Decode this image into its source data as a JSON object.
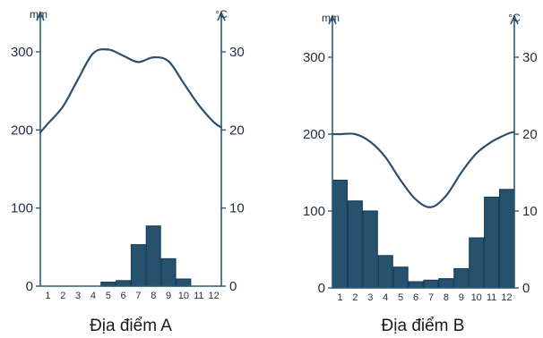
{
  "chart_data": [
    {
      "type": "bar",
      "subtype": "climate-chart",
      "title": "Địa điểm A",
      "left_axis_unit": "mm",
      "right_axis_unit": "°C",
      "left_ticks": [
        "0",
        "100",
        "200",
        "300"
      ],
      "right_ticks": [
        "0",
        "10",
        "20",
        "30"
      ],
      "ylim_left": [
        0,
        300
      ],
      "ylim_right": [
        0,
        30
      ],
      "categories": [
        "1",
        "2",
        "3",
        "4",
        "5",
        "6",
        "7",
        "8",
        "9",
        "10",
        "11",
        "12"
      ],
      "rainfall": [
        0,
        0,
        0,
        0,
        5,
        7,
        53,
        77,
        35,
        9,
        0,
        0
      ],
      "temperature": [
        20.8,
        23,
        26.5,
        29.8,
        30.3,
        29.5,
        28.7,
        29.3,
        28.8,
        26,
        23.2,
        21
      ]
    },
    {
      "type": "bar",
      "subtype": "climate-chart",
      "title": "Địa điểm B",
      "left_axis_unit": "mm",
      "right_axis_unit": "°C",
      "left_ticks": [
        "0",
        "100",
        "200",
        "300"
      ],
      "right_ticks": [
        "0",
        "10",
        "20",
        "30"
      ],
      "ylim_left": [
        0,
        300
      ],
      "ylim_right": [
        0,
        30
      ],
      "categories": [
        "1",
        "2",
        "3",
        "4",
        "5",
        "6",
        "7",
        "8",
        "9",
        "10",
        "11",
        "12"
      ],
      "rainfall": [
        140,
        113,
        100,
        42,
        27,
        8,
        10,
        12,
        25,
        65,
        118,
        128
      ],
      "temperature": [
        20,
        20,
        19,
        17,
        14,
        11.5,
        10.5,
        12,
        15,
        17.5,
        19,
        20
      ]
    }
  ],
  "colors": {
    "bar_fill": "#27526e",
    "bar_stroke": "#1a3d55",
    "axis": "#2b5a7a",
    "line": "#2b4f6d"
  }
}
